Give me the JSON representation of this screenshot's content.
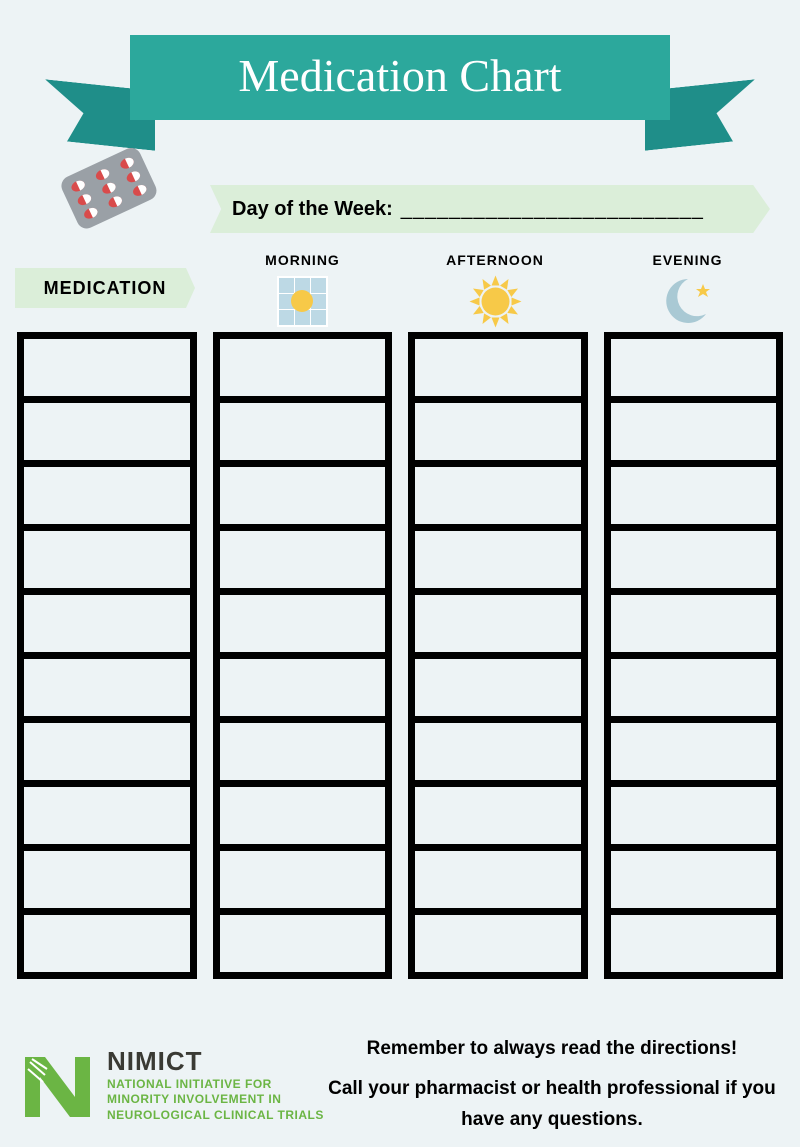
{
  "title": "Medication Chart",
  "dayLabel": "Day of the Week:",
  "dayLine": "_________________________",
  "medLabel": "MEDICATION",
  "columns": [
    "MORNING",
    "AFTERNOON",
    "EVENING"
  ],
  "rows": 10,
  "org": {
    "name": "NIMICT",
    "tagline1": "NATIONAL INITIATIVE FOR",
    "tagline2": "MINORITY INVOLVEMENT IN",
    "tagline3": "NEUROLOGICAL CLINICAL TRIALS"
  },
  "footer": {
    "line1": "Remember to always read the directions!",
    "line2": "Call your pharmacist or health professional if you have any questions."
  },
  "colors": {
    "bg": "#edf3f5",
    "banner": "#2ca89c",
    "bannerDark": "#1f8e89",
    "ribbon": "#dbeed9",
    "logoGreen": "#6bb544",
    "sun": "#f7c948",
    "moon": "#a9c9d4",
    "star": "#f7c948",
    "window": "#bdd9e5",
    "windowSun": "#f7c948",
    "pillBase": "#9aa0a6",
    "pillRed": "#d94b4b"
  }
}
